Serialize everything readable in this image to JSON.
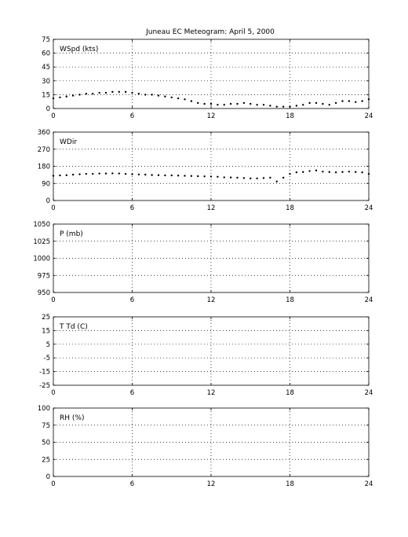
{
  "title": "Juneau EC Meteogram:      April  5, 2000",
  "chart_data": [
    {
      "type": "scatter",
      "label": "WSpd (kts)",
      "xlim": [
        0,
        24
      ],
      "xticks": [
        0,
        6,
        12,
        18,
        24
      ],
      "ylim": [
        0,
        75
      ],
      "yticks": [
        0,
        15,
        30,
        45,
        60,
        75
      ],
      "grid": true,
      "series": [
        {
          "x": [
            0,
            0.5,
            1,
            1.5,
            2,
            2.5,
            3,
            3.5,
            4,
            4.5,
            5,
            5.5,
            6,
            6.5,
            7,
            7.5,
            8,
            8.5,
            9,
            9.5,
            10,
            10.5,
            11,
            11.5,
            12,
            12.5,
            13,
            13.5,
            14,
            14.5,
            15,
            15.5,
            16,
            16.5,
            17,
            17.5,
            18,
            18.5,
            19,
            19.5,
            20,
            20.5,
            21,
            21.5,
            22,
            22.5,
            23,
            23.5,
            24
          ],
          "y": [
            11,
            12,
            13,
            14,
            15,
            16,
            16,
            17,
            17,
            18,
            18,
            18,
            17,
            16,
            15,
            15,
            14,
            13,
            12,
            11,
            10,
            8,
            6,
            5,
            5,
            4,
            4,
            5,
            5,
            6,
            5,
            4,
            4,
            3,
            2,
            2,
            2,
            3,
            4,
            6,
            6,
            5,
            4,
            6,
            8,
            8,
            7,
            8,
            10
          ]
        }
      ]
    },
    {
      "type": "scatter",
      "label": "WDir",
      "xlim": [
        0,
        24
      ],
      "xticks": [
        0,
        6,
        12,
        18,
        24
      ],
      "ylim": [
        0,
        360
      ],
      "yticks": [
        0,
        90,
        180,
        270,
        360
      ],
      "grid": true,
      "series": [
        {
          "x": [
            0,
            0.5,
            1,
            1.5,
            2,
            2.5,
            3,
            3.5,
            4,
            4.5,
            5,
            5.5,
            6,
            6.5,
            7,
            7.5,
            8,
            8.5,
            9,
            9.5,
            10,
            10.5,
            11,
            11.5,
            12,
            12.5,
            13,
            13.5,
            14,
            14.5,
            15,
            15.5,
            16,
            16.5,
            17,
            17.5,
            18,
            18.5,
            19,
            19.5,
            20,
            20.5,
            21,
            21.5,
            22,
            22.5,
            23,
            23.5,
            24
          ],
          "y": [
            130,
            132,
            133,
            136,
            138,
            140,
            140,
            142,
            142,
            143,
            142,
            140,
            138,
            137,
            136,
            134,
            133,
            132,
            132,
            131,
            130,
            129,
            128,
            127,
            126,
            125,
            122,
            121,
            120,
            118,
            116,
            116,
            118,
            120,
            100,
            120,
            140,
            148,
            150,
            155,
            158,
            152,
            150,
            148,
            150,
            152,
            150,
            148,
            140
          ]
        }
      ]
    },
    {
      "type": "scatter",
      "label": "P (mb)",
      "xlim": [
        0,
        24
      ],
      "xticks": [
        0,
        6,
        12,
        18,
        24
      ],
      "ylim": [
        950,
        1050
      ],
      "yticks": [
        950,
        975,
        1000,
        1025,
        1050
      ],
      "grid": true,
      "series": []
    },
    {
      "type": "scatter",
      "label": "T Td (C)",
      "xlim": [
        0,
        24
      ],
      "xticks": [
        0,
        6,
        12,
        18,
        24
      ],
      "ylim": [
        -25,
        25
      ],
      "yticks": [
        -25,
        -15,
        -5,
        5,
        15,
        25
      ],
      "grid": true,
      "series": []
    },
    {
      "type": "scatter",
      "label": "RH (%)",
      "xlim": [
        0,
        24
      ],
      "xticks": [
        0,
        6,
        12,
        18,
        24
      ],
      "ylim": [
        0,
        100
      ],
      "yticks": [
        0,
        25,
        50,
        75,
        100
      ],
      "grid": true,
      "series": []
    }
  ]
}
